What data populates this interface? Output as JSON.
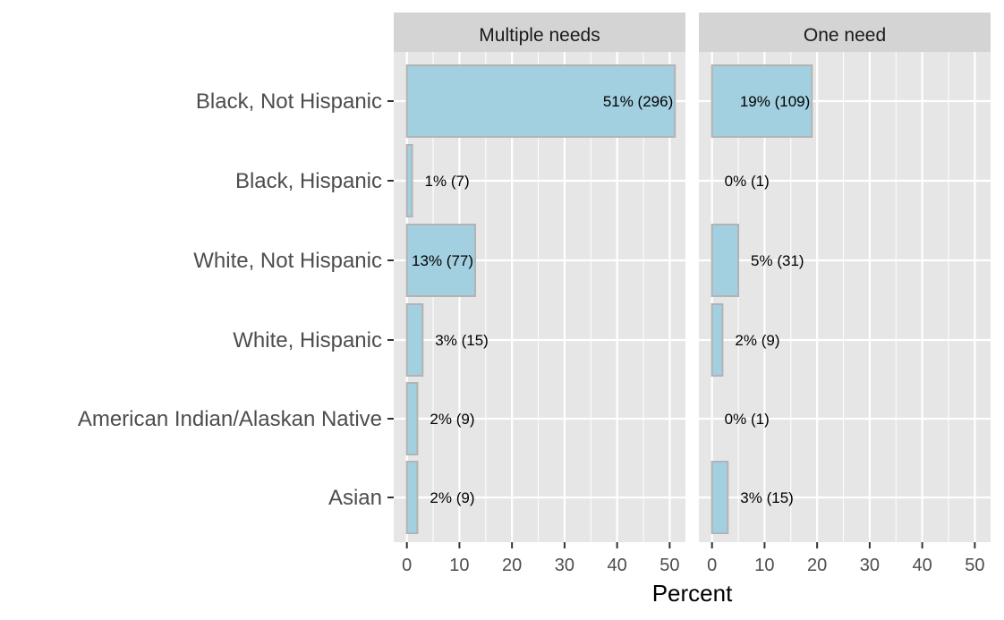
{
  "chart_data": {
    "type": "bar",
    "orientation": "horizontal",
    "xlabel": "Percent",
    "ylabel": "",
    "xlim": [
      -2.5,
      53
    ],
    "xticks": [
      0,
      10,
      20,
      30,
      40,
      50
    ],
    "grid": true,
    "categories": [
      "Black, Not Hispanic",
      "Black, Hispanic",
      "White, Not Hispanic",
      "White, Hispanic",
      "American Indian/Alaskan Native",
      "Asian"
    ],
    "facets": [
      {
        "name": "Multiple needs",
        "values": [
          51,
          1,
          13,
          3,
          2,
          2
        ],
        "labels": [
          "51% (296)",
          "1% (7)",
          "13% (77)",
          "3% (15)",
          "2% (9)",
          "2% (9)"
        ]
      },
      {
        "name": "One need",
        "values": [
          19,
          0,
          5,
          2,
          0,
          3
        ],
        "labels": [
          "19% (109)",
          "0% (1)",
          "5% (31)",
          "2% (9)",
          "0% (1)",
          "3% (15)"
        ]
      }
    ],
    "colors": {
      "bar_fill": "#a2d0e0",
      "bar_stroke": "#b3b3b3",
      "panel_bg": "#e6e6e6",
      "strip_bg": "#d4d4d4",
      "grid": "#ffffff"
    }
  }
}
